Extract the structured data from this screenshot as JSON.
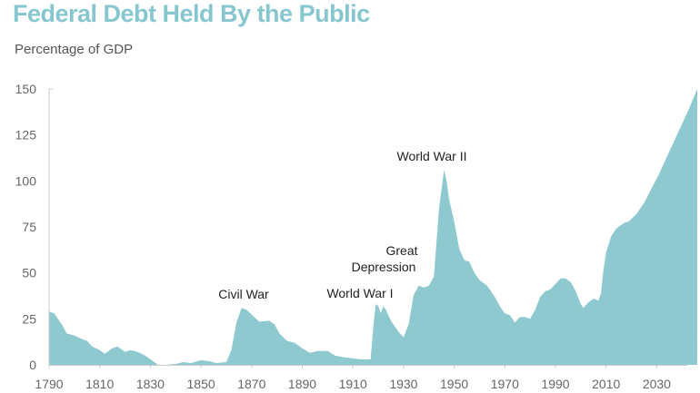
{
  "chart_data": {
    "type": "area",
    "title": "Federal Debt Held By the Public",
    "ylabel": "Percentage of GDP",
    "xlabel": "",
    "xlim": [
      1790,
      2046
    ],
    "ylim": [
      0,
      150
    ],
    "x_ticks": [
      1790,
      1810,
      1830,
      1850,
      1870,
      1890,
      1910,
      1930,
      1950,
      1970,
      1990,
      2010,
      2030
    ],
    "y_ticks": [
      0,
      25,
      50,
      75,
      100,
      125,
      150
    ],
    "grid": false,
    "color": "#8dc9cf",
    "x": [
      1790,
      1792,
      1795,
      1797,
      1800,
      1803,
      1805,
      1807,
      1810,
      1812,
      1815,
      1817,
      1820,
      1822,
      1825,
      1828,
      1830,
      1833,
      1836,
      1840,
      1843,
      1846,
      1850,
      1853,
      1856,
      1860,
      1862,
      1864,
      1866,
      1868,
      1871,
      1873,
      1877,
      1879,
      1881,
      1884,
      1887,
      1890,
      1893,
      1896,
      1900,
      1903,
      1907,
      1910,
      1913,
      1917,
      1918,
      1919,
      1920,
      1921,
      1922,
      1923,
      1925,
      1928,
      1930,
      1932,
      1934,
      1936,
      1938,
      1940,
      1942,
      1944,
      1946,
      1947,
      1948,
      1950,
      1952,
      1954,
      1956,
      1958,
      1960,
      1963,
      1966,
      1968,
      1970,
      1972,
      1974,
      1976,
      1978,
      1980,
      1982,
      1984,
      1986,
      1988,
      1990,
      1992,
      1994,
      1996,
      1998,
      2000,
      2001,
      2003,
      2005,
      2007,
      2008,
      2009,
      2010,
      2012,
      2014,
      2016,
      2017,
      2019,
      2022,
      2025,
      2028,
      2031,
      2034,
      2037,
      2040,
      2043,
      2046
    ],
    "values": [
      29,
      28,
      22,
      17,
      16,
      14,
      13,
      10,
      8,
      6,
      9,
      10,
      7,
      8,
      7,
      5,
      3,
      0,
      0,
      0.5,
      1.5,
      1,
      2.5,
      2,
      1,
      1.5,
      8,
      23,
      31,
      30,
      26,
      23.5,
      24,
      22,
      17,
      13,
      12,
      9,
      6.5,
      7.5,
      7.5,
      5,
      4,
      3.5,
      3,
      3,
      20,
      33,
      32,
      28,
      32,
      30,
      24,
      18,
      15,
      22,
      38,
      43,
      42,
      43,
      48,
      85,
      106,
      100,
      90,
      78,
      63,
      57,
      56,
      50,
      46,
      43,
      37,
      32,
      28,
      27,
      23,
      26,
      26,
      25,
      30,
      37,
      40,
      41,
      44,
      47,
      47,
      45,
      40,
      33,
      31,
      34,
      36,
      35,
      39,
      52,
      61,
      70,
      74,
      76,
      77,
      78,
      82,
      88,
      96,
      104,
      113,
      122,
      131,
      140,
      150
    ],
    "annotations": [
      {
        "text": "Civil War",
        "year": 1866
      },
      {
        "text": "World War I",
        "year": 1918
      },
      {
        "text": "Great",
        "year": 1932
      },
      {
        "text": "Depression",
        "year": 1932
      },
      {
        "text": "World War II",
        "year": 1946
      }
    ]
  }
}
